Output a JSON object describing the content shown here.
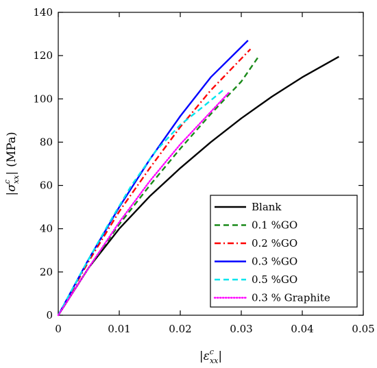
{
  "chart_data": {
    "type": "line",
    "title": "",
    "xlabel": {
      "bar": "|",
      "symbol": "ε",
      "sup": "c",
      "sub": "xx"
    },
    "ylabel": {
      "bar": "|",
      "symbol": "σ",
      "sup": "c",
      "sub": "xx",
      "unit": "(MPa)"
    },
    "xlim": [
      0,
      0.05
    ],
    "ylim": [
      0,
      140
    ],
    "x_ticks": [
      "0",
      "0.01",
      "0.02",
      "0.03",
      "0.04",
      "0.05"
    ],
    "y_ticks": [
      "0",
      "20",
      "40",
      "60",
      "80",
      "100",
      "120",
      "140"
    ],
    "grid": false,
    "legend_position": "bottom-right",
    "series": [
      {
        "name": "Blank",
        "color": "#000000",
        "dash": "solid",
        "x": [
          0,
          0.005,
          0.01,
          0.015,
          0.02,
          0.025,
          0.03,
          0.035,
          0.04,
          0.046
        ],
        "y": [
          0,
          22,
          40,
          55,
          68,
          80,
          91,
          101,
          110,
          119.5
        ]
      },
      {
        "name": "0.1 %GO",
        "color": "#1a8a1a",
        "dash": "dashed",
        "x": [
          0,
          0.005,
          0.01,
          0.015,
          0.02,
          0.025,
          0.03,
          0.0327
        ],
        "y": [
          0,
          22,
          42,
          60,
          77,
          93,
          108,
          119
        ]
      },
      {
        "name": "0.2 %GO",
        "color": "#ff0000",
        "dash": "dashdot",
        "x": [
          0,
          0.005,
          0.01,
          0.015,
          0.02,
          0.025,
          0.0315
        ],
        "y": [
          0,
          25,
          48,
          68,
          87,
          104,
          123
        ]
      },
      {
        "name": "0.3 %GO",
        "color": "#0000ff",
        "dash": "solid",
        "x": [
          0,
          0.005,
          0.01,
          0.015,
          0.02,
          0.025,
          0.0311
        ],
        "y": [
          0,
          26,
          50,
          72,
          92,
          110,
          127
        ]
      },
      {
        "name": "0.5 %GO",
        "color": "#00e5ee",
        "dash": "dashed",
        "x": [
          0,
          0.004,
          0.008,
          0.012,
          0.016,
          0.02,
          0.024,
          0.027
        ],
        "y": [
          0,
          21,
          41,
          60,
          76,
          88,
          97,
          104
        ]
      },
      {
        "name": "0.3 % Graphite",
        "color": "#ff00ff",
        "dash": "dotted",
        "x": [
          0,
          0.005,
          0.01,
          0.015,
          0.02,
          0.025,
          0.028
        ],
        "y": [
          0,
          22,
          43,
          62,
          79,
          94,
          103
        ]
      }
    ]
  }
}
